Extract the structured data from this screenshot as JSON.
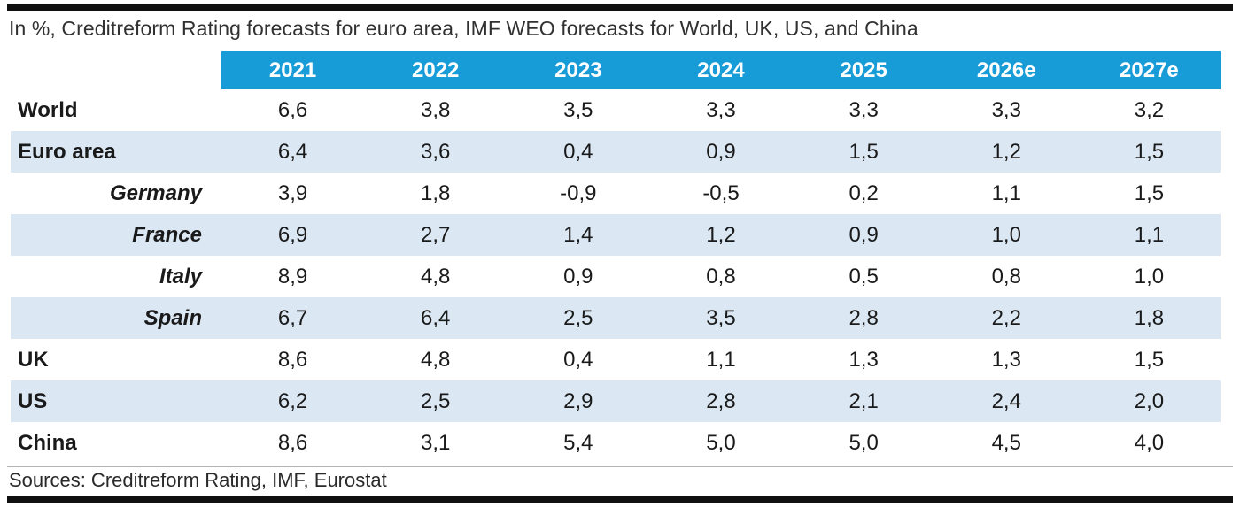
{
  "title": "In %, Creditreform Rating forecasts for euro area, IMF WEO forecasts for World, UK, US, and China",
  "table": {
    "col_headers": [
      "2021",
      "2022",
      "2023",
      "2024",
      "2025",
      "2026e",
      "2027e"
    ],
    "rows": [
      {
        "label": "World",
        "style": "main",
        "values": [
          "6,6",
          "3,8",
          "3,5",
          "3,3",
          "3,3",
          "3,3",
          "3,2"
        ]
      },
      {
        "label": "Euro area",
        "style": "main",
        "values": [
          "6,4",
          "3,6",
          "0,4",
          "0,9",
          "1,5",
          "1,2",
          "1,5"
        ]
      },
      {
        "label": "Germany",
        "style": "sub",
        "values": [
          "3,9",
          "1,8",
          "-0,9",
          "-0,5",
          "0,2",
          "1,1",
          "1,5"
        ]
      },
      {
        "label": "France",
        "style": "sub",
        "values": [
          "6,9",
          "2,7",
          "1,4",
          "1,2",
          "0,9",
          "1,0",
          "1,1"
        ]
      },
      {
        "label": "Italy",
        "style": "sub",
        "values": [
          "8,9",
          "4,8",
          "0,9",
          "0,8",
          "0,5",
          "0,8",
          "1,0"
        ]
      },
      {
        "label": "Spain",
        "style": "sub",
        "values": [
          "6,7",
          "6,4",
          "2,5",
          "3,5",
          "2,8",
          "2,2",
          "1,8"
        ]
      },
      {
        "label": "UK",
        "style": "main",
        "values": [
          "8,6",
          "4,8",
          "0,4",
          "1,1",
          "1,3",
          "1,3",
          "1,5"
        ]
      },
      {
        "label": "US",
        "style": "main",
        "values": [
          "6,2",
          "2,5",
          "2,9",
          "2,8",
          "2,1",
          "2,4",
          "2,0"
        ]
      },
      {
        "label": "China",
        "style": "main",
        "values": [
          "8,6",
          "3,1",
          "5,4",
          "5,0",
          "5,0",
          "4,5",
          "4,0"
        ]
      }
    ]
  },
  "footer": {
    "sources": "Sources: Creditreform Rating, IMF, Eurostat"
  },
  "colors": {
    "header_bg": "#189cd8",
    "header_text": "#ffffff",
    "stripe_bg": "#dbe8f4",
    "rule": "#101010",
    "body_text": "#1a1a1a"
  },
  "chart_data": {
    "type": "table",
    "title": "In %, Creditreform Rating forecasts for euro area, IMF WEO forecasts for World, UK, US, and China",
    "columns": [
      "2021",
      "2022",
      "2023",
      "2024",
      "2025",
      "2026e",
      "2027e"
    ],
    "unit": "percent, decimal comma notation",
    "series": [
      {
        "name": "World",
        "values": [
          6.6,
          3.8,
          3.5,
          3.3,
          3.3,
          3.3,
          3.2
        ]
      },
      {
        "name": "Euro area",
        "values": [
          6.4,
          3.6,
          0.4,
          0.9,
          1.5,
          1.2,
          1.5
        ]
      },
      {
        "name": "Germany",
        "values": [
          3.9,
          1.8,
          -0.9,
          -0.5,
          0.2,
          1.1,
          1.5
        ]
      },
      {
        "name": "France",
        "values": [
          6.9,
          2.7,
          1.4,
          1.2,
          0.9,
          1.0,
          1.1
        ]
      },
      {
        "name": "Italy",
        "values": [
          8.9,
          4.8,
          0.9,
          0.8,
          0.5,
          0.8,
          1.0
        ]
      },
      {
        "name": "Spain",
        "values": [
          6.7,
          6.4,
          2.5,
          3.5,
          2.8,
          2.2,
          1.8
        ]
      },
      {
        "name": "UK",
        "values": [
          8.6,
          4.8,
          0.4,
          1.1,
          1.3,
          1.3,
          1.5
        ]
      },
      {
        "name": "US",
        "values": [
          6.2,
          2.5,
          2.9,
          2.8,
          2.1,
          2.4,
          2.0
        ]
      },
      {
        "name": "China",
        "values": [
          8.6,
          3.1,
          5.4,
          5.0,
          5.0,
          4.5,
          4.0
        ]
      }
    ],
    "notes": "2026e and 2027e are estimates/forecasts; shaded alternating rows; sources: Creditreform Rating, IMF, Eurostat"
  }
}
